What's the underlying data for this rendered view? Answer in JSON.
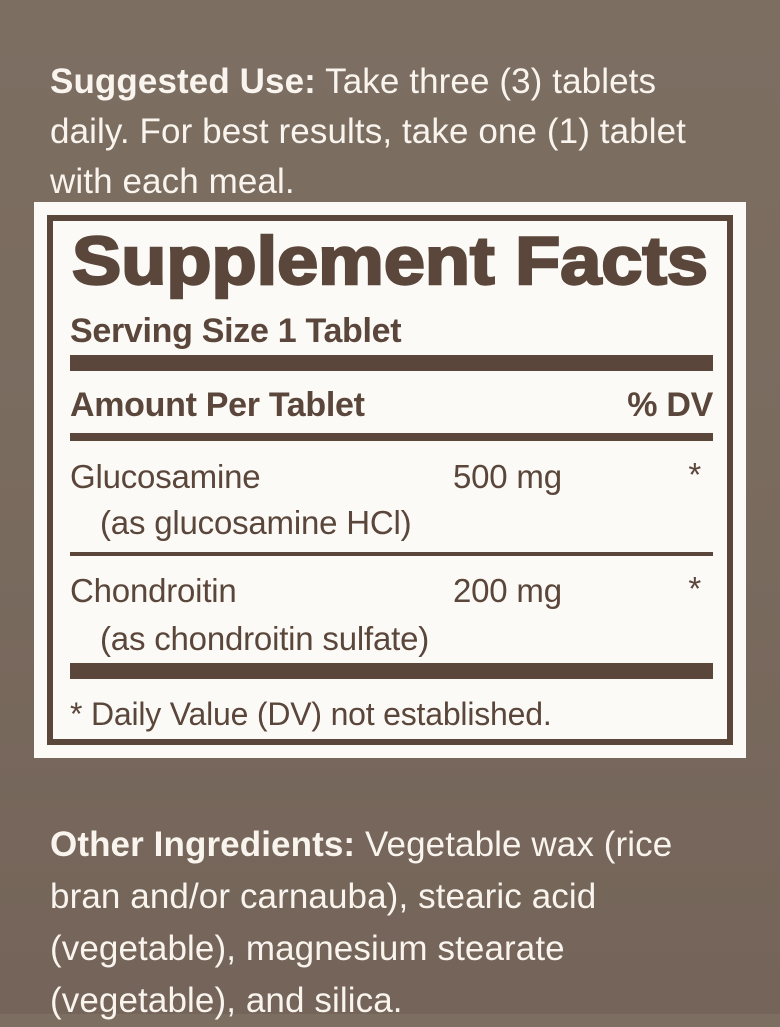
{
  "colors": {
    "background_top": "#7d6e62",
    "background_bottom": "#746459",
    "panel_background": "#fcfaf6",
    "ink_brown": "#5a463a",
    "light_text": "#f9f5ee"
  },
  "suggested_use": {
    "label": "Suggested Use:",
    "text": " Take three (3) tablets daily. For best results, take one (1) tablet with each meal."
  },
  "supplement_facts": {
    "title": "Supplement Facts",
    "serving_size": "Serving Size 1 Tablet",
    "columns": {
      "amount_header": "Amount Per Tablet",
      "dv_header": "% DV"
    },
    "rows": [
      {
        "name": "Glucosamine",
        "detail": "(as glucosamine HCl)",
        "amount": "500 mg",
        "dv": "*"
      },
      {
        "name": "Chondroitin",
        "detail": "(as chondroitin sulfate)",
        "amount": "200 mg",
        "dv": "*"
      }
    ],
    "footnote": "* Daily Value (DV) not established."
  },
  "other_ingredients": {
    "label": "Other Ingredients:",
    "text": " Vegetable wax (rice bran and/or carnauba), stearic acid (vegetable), magnesium stearate (vegetable), and silica."
  }
}
